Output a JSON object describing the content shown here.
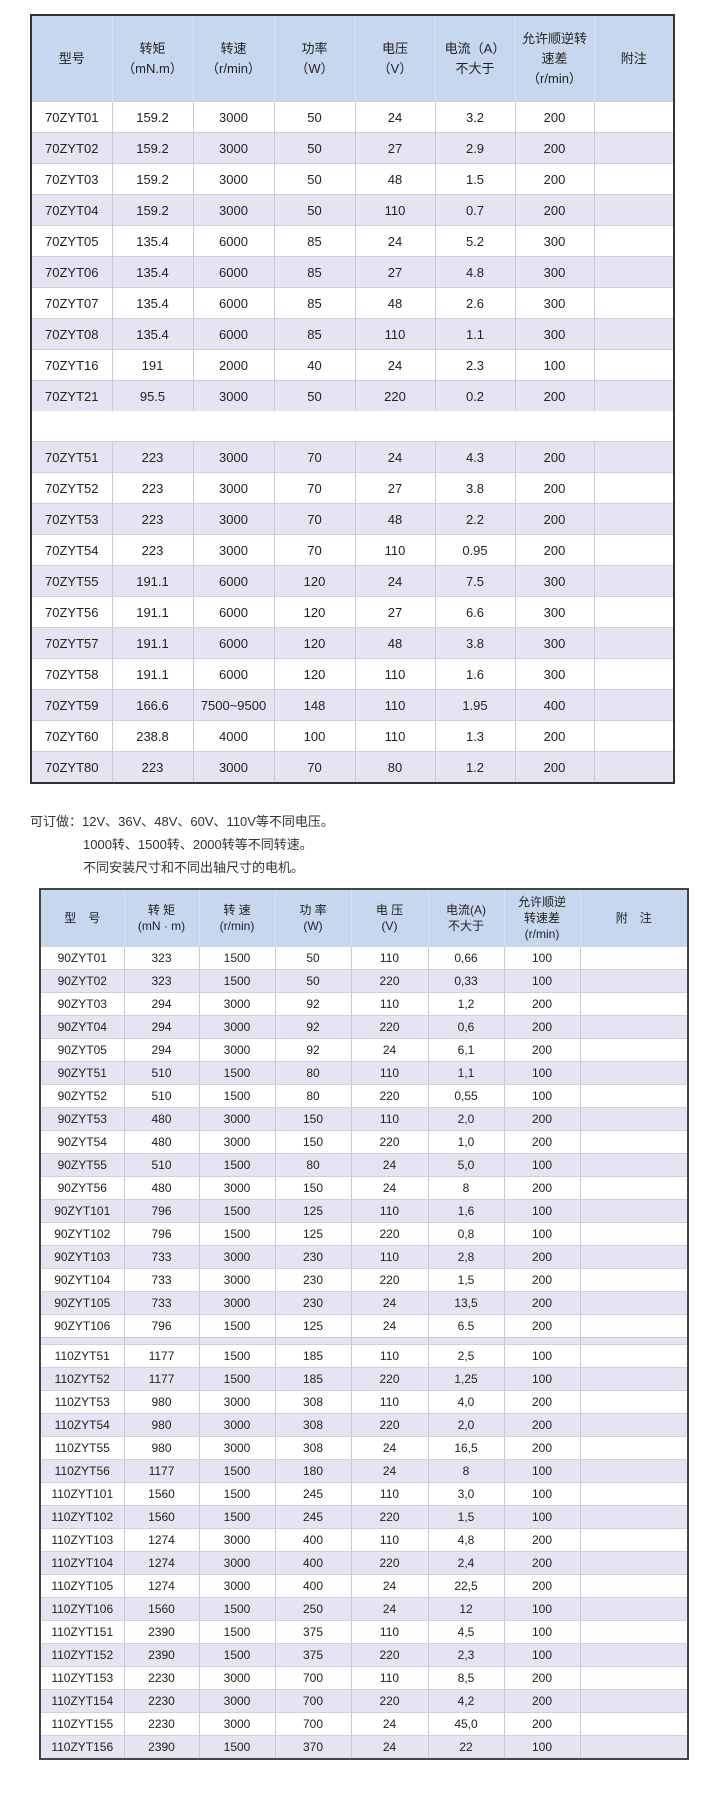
{
  "table1": {
    "headers": [
      "型号",
      "转矩\n（mN.m）",
      "转速\n（r/min）",
      "功率\n（W）",
      "电压\n（V）",
      "电流（A）\n不大于",
      "允许顺逆转\n速差\n（r/min）",
      "附注"
    ],
    "groups": [
      [
        [
          "70ZYT01",
          "159.2",
          "3000",
          "50",
          "24",
          "3.2",
          "200",
          ""
        ],
        [
          "70ZYT02",
          "159.2",
          "3000",
          "50",
          "27",
          "2.9",
          "200",
          ""
        ],
        [
          "70ZYT03",
          "159.2",
          "3000",
          "50",
          "48",
          "1.5",
          "200",
          ""
        ],
        [
          "70ZYT04",
          "159.2",
          "3000",
          "50",
          "110",
          "0.7",
          "200",
          ""
        ],
        [
          "70ZYT05",
          "135.4",
          "6000",
          "85",
          "24",
          "5.2",
          "300",
          ""
        ],
        [
          "70ZYT06",
          "135.4",
          "6000",
          "85",
          "27",
          "4.8",
          "300",
          ""
        ],
        [
          "70ZYT07",
          "135.4",
          "6000",
          "85",
          "48",
          "2.6",
          "300",
          ""
        ],
        [
          "70ZYT08",
          "135.4",
          "6000",
          "85",
          "110",
          "1.1",
          "300",
          ""
        ],
        [
          "70ZYT16",
          "191",
          "2000",
          "40",
          "24",
          "2.3",
          "100",
          ""
        ],
        [
          "70ZYT21",
          "95.5",
          "3000",
          "50",
          "220",
          "0.2",
          "200",
          ""
        ]
      ],
      [
        [
          "70ZYT51",
          "223",
          "3000",
          "70",
          "24",
          "4.3",
          "200",
          ""
        ],
        [
          "70ZYT52",
          "223",
          "3000",
          "70",
          "27",
          "3.8",
          "200",
          ""
        ],
        [
          "70ZYT53",
          "223",
          "3000",
          "70",
          "48",
          "2.2",
          "200",
          ""
        ],
        [
          "70ZYT54",
          "223",
          "3000",
          "70",
          "110",
          "0.95",
          "200",
          ""
        ],
        [
          "70ZYT55",
          "191.1",
          "6000",
          "120",
          "24",
          "7.5",
          "300",
          ""
        ],
        [
          "70ZYT56",
          "191.1",
          "6000",
          "120",
          "27",
          "6.6",
          "300",
          ""
        ],
        [
          "70ZYT57",
          "191.1",
          "6000",
          "120",
          "48",
          "3.8",
          "300",
          ""
        ],
        [
          "70ZYT58",
          "191.1",
          "6000",
          "120",
          "110",
          "1.6",
          "300",
          ""
        ],
        [
          "70ZYT59",
          "166.6",
          "7500~9500",
          "148",
          "110",
          "1.95",
          "400",
          ""
        ],
        [
          "70ZYT60",
          "238.8",
          "4000",
          "100",
          "110",
          "1.3",
          "200",
          ""
        ],
        [
          "70ZYT80",
          "223",
          "3000",
          "70",
          "80",
          "1.2",
          "200",
          ""
        ]
      ]
    ]
  },
  "notes": {
    "lines": [
      "可订做：12V、36V、48V、60V、110V等不同电压。",
      "1000转、1500转、2000转等不同转速。",
      "不同安装尺寸和不同出轴尺寸的电机。"
    ]
  },
  "table2": {
    "headers": [
      "型　号",
      "转 矩\n(mN · m)",
      "转 速\n(r/min)",
      "功 率\n(W)",
      "电 压\n(V)",
      "电流(A)\n不大于",
      "允许顺逆\n转速差\n(r/min)",
      "附　注"
    ],
    "groups": [
      [
        [
          "90ZYT01",
          "323",
          "1500",
          "50",
          "110",
          "0,66",
          "100",
          ""
        ],
        [
          "90ZYT02",
          "323",
          "1500",
          "50",
          "220",
          "0,33",
          "100",
          ""
        ],
        [
          "90ZYT03",
          "294",
          "3000",
          "92",
          "110",
          "1,2",
          "200",
          ""
        ],
        [
          "90ZYT04",
          "294",
          "3000",
          "92",
          "220",
          "0,6",
          "200",
          ""
        ],
        [
          "90ZYT05",
          "294",
          "3000",
          "92",
          "24",
          "6,1",
          "200",
          ""
        ],
        [
          "90ZYT51",
          "510",
          "1500",
          "80",
          "110",
          "1,1",
          "100",
          ""
        ],
        [
          "90ZYT52",
          "510",
          "1500",
          "80",
          "220",
          "0,55",
          "100",
          ""
        ],
        [
          "90ZYT53",
          "480",
          "3000",
          "150",
          "110",
          "2,0",
          "200",
          ""
        ],
        [
          "90ZYT54",
          "480",
          "3000",
          "150",
          "220",
          "1,0",
          "200",
          ""
        ],
        [
          "90ZYT55",
          "510",
          "1500",
          "80",
          "24",
          "5,0",
          "100",
          ""
        ],
        [
          "90ZYT56",
          "480",
          "3000",
          "150",
          "24",
          "8",
          "200",
          ""
        ],
        [
          "90ZYT101",
          "796",
          "1500",
          "125",
          "110",
          "1,6",
          "100",
          ""
        ],
        [
          "90ZYT102",
          "796",
          "1500",
          "125",
          "220",
          "0,8",
          "100",
          ""
        ],
        [
          "90ZYT103",
          "733",
          "3000",
          "230",
          "110",
          "2,8",
          "200",
          ""
        ],
        [
          "90ZYT104",
          "733",
          "3000",
          "230",
          "220",
          "1,5",
          "200",
          ""
        ],
        [
          "90ZYT105",
          "733",
          "3000",
          "230",
          "24",
          "13,5",
          "200",
          ""
        ],
        [
          "90ZYT106",
          "796",
          "1500",
          "125",
          "24",
          "6.5",
          "200",
          ""
        ]
      ],
      [
        [
          "110ZYT51",
          "1177",
          "1500",
          "185",
          "110",
          "2,5",
          "100",
          ""
        ],
        [
          "110ZYT52",
          "1177",
          "1500",
          "185",
          "220",
          "1,25",
          "100",
          ""
        ],
        [
          "110ZYT53",
          "980",
          "3000",
          "308",
          "110",
          "4,0",
          "200",
          ""
        ],
        [
          "110ZYT54",
          "980",
          "3000",
          "308",
          "220",
          "2,0",
          "200",
          ""
        ],
        [
          "110ZYT55",
          "980",
          "3000",
          "308",
          "24",
          "16,5",
          "200",
          ""
        ],
        [
          "110ZYT56",
          "1177",
          "1500",
          "180",
          "24",
          "8",
          "100",
          ""
        ],
        [
          "110ZYT101",
          "1560",
          "1500",
          "245",
          "110",
          "3,0",
          "100",
          ""
        ],
        [
          "110ZYT102",
          "1560",
          "1500",
          "245",
          "220",
          "1,5",
          "100",
          ""
        ],
        [
          "110ZYT103",
          "1274",
          "3000",
          "400",
          "110",
          "4,8",
          "200",
          ""
        ],
        [
          "110ZYT104",
          "1274",
          "3000",
          "400",
          "220",
          "2,4",
          "200",
          ""
        ],
        [
          "110ZYT105",
          "1274",
          "3000",
          "400",
          "24",
          "22,5",
          "200",
          ""
        ],
        [
          "110ZYT106",
          "1560",
          "1500",
          "250",
          "24",
          "12",
          "100",
          ""
        ],
        [
          "110ZYT151",
          "2390",
          "1500",
          "375",
          "110",
          "4,5",
          "100",
          ""
        ],
        [
          "110ZYT152",
          "2390",
          "1500",
          "375",
          "220",
          "2,3",
          "100",
          ""
        ],
        [
          "110ZYT153",
          "2230",
          "3000",
          "700",
          "110",
          "8,5",
          "200",
          ""
        ],
        [
          "110ZYT154",
          "2230",
          "3000",
          "700",
          "220",
          "4,2",
          "200",
          ""
        ],
        [
          "110ZYT155",
          "2230",
          "3000",
          "700",
          "24",
          "45,0",
          "200",
          ""
        ],
        [
          "110ZYT156",
          "2390",
          "1500",
          "370",
          "24",
          "22",
          "100",
          ""
        ]
      ]
    ]
  },
  "colors": {
    "header_bg": "#c6d7ee",
    "stripe_bg": "#e4e4f2",
    "border": "#333333"
  }
}
